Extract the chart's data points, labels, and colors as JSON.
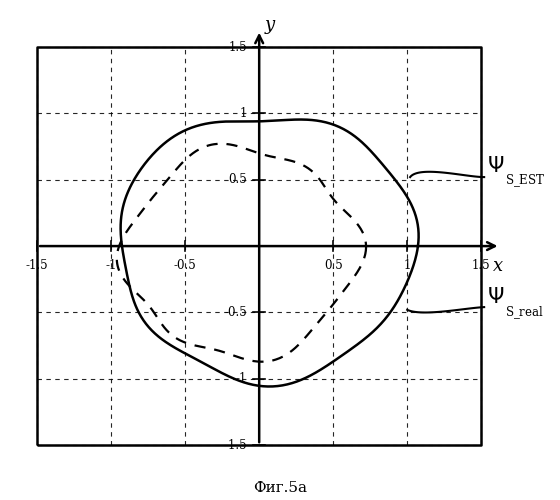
{
  "title": "",
  "xlabel": "x",
  "ylabel": "y",
  "caption": "Фиг.5а",
  "xlim": [
    -1.5,
    1.5
  ],
  "ylim": [
    -1.5,
    1.5
  ],
  "xticks": [
    -1.5,
    -1.0,
    -0.5,
    0.5,
    1.0,
    1.5
  ],
  "yticks": [
    -1.5,
    -1.0,
    -0.5,
    0.5,
    1.0,
    1.5
  ],
  "xtick_labels": [
    "-1.5",
    "-1",
    "-0.5",
    "0.5",
    "1",
    "1.5"
  ],
  "ytick_labels": [
    "-1.5",
    "-1",
    "-0.5",
    "0.5",
    "1",
    "1.5"
  ],
  "solid_color": "#000000",
  "dashed_color": "#000000",
  "background": "#ffffff",
  "n_points": 600
}
